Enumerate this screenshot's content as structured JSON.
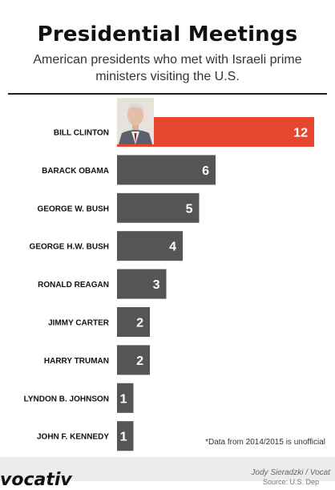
{
  "title": "Presidential Meetings",
  "subtitle": "American presidents who met with Israeli prime ministers visiting the U.S.",
  "footnote": "*Data from 2014/2015 is unofficial",
  "footer": {
    "logo": "vocativ",
    "credit": "Jody Sieradzki / Vocat",
    "source": "Source: U.S. Dep"
  },
  "colors": {
    "highlight": "#e8472f",
    "bar": "#555555"
  },
  "chart_data": {
    "type": "bar",
    "orientation": "horizontal",
    "categories": [
      "BILL CLINTON",
      "BARACK OBAMA",
      "GEORGE W. BUSH",
      "GEORGE H.W. BUSH",
      "RONALD REAGAN",
      "JIMMY CARTER",
      "HARRY TRUMAN",
      "LYNDON B. JOHNSON",
      "JOHN F. KENNEDY"
    ],
    "values": [
      12,
      6,
      5,
      4,
      3,
      2,
      2,
      1,
      1
    ],
    "highlight": "BILL CLINTON",
    "title": "Presidential Meetings",
    "xlim": [
      0,
      12
    ],
    "grid": false,
    "data_labels": true
  }
}
